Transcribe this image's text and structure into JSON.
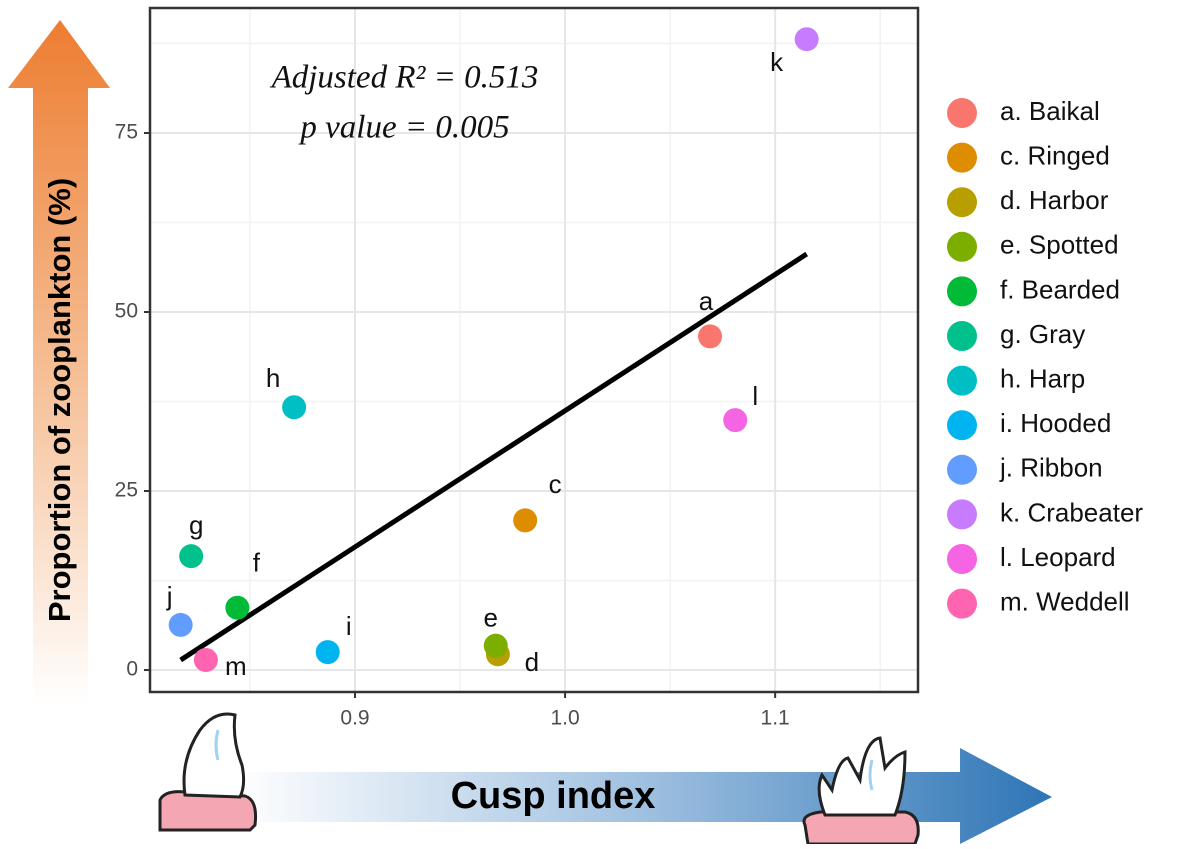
{
  "chart_data": {
    "type": "scatter",
    "xlabel": "Cusp index",
    "ylabel": "Proportion of zooplankton (%)",
    "annotations": [
      "Adjusted R² = 0.513",
      "p value = 0.005"
    ],
    "xlim": [
      0.8024,
      1.168
    ],
    "ylim": [
      -3.07,
      92.46
    ],
    "xticks": [
      0.9,
      {
        "value": 1.0,
        "label": "1.0"
      },
      1.1
    ],
    "yticks": [
      0,
      25,
      50,
      75
    ],
    "grid": true,
    "trend_line": {
      "color": "#000000",
      "x": [
        0.817,
        1.115
      ],
      "y": [
        1.4,
        58.1
      ]
    },
    "series": [
      {
        "name": "a. Baikal",
        "label": "a",
        "color": "#F8766D",
        "x": [
          1.069
        ],
        "values": [
          46.6
        ]
      },
      {
        "name": "c. Ringed",
        "label": "c",
        "color": "#DE8C00",
        "x": [
          0.981
        ],
        "values": [
          20.9
        ]
      },
      {
        "name": "d. Harbor",
        "label": "d",
        "color": "#B79F00",
        "x": [
          0.968
        ],
        "values": [
          2.2
        ]
      },
      {
        "name": "e. Spotted",
        "label": "e",
        "color": "#7CAE00",
        "x": [
          0.967
        ],
        "values": [
          3.4
        ]
      },
      {
        "name": "f. Bearded",
        "label": "f",
        "color": "#00BA38",
        "x": [
          0.844
        ],
        "values": [
          8.7
        ]
      },
      {
        "name": "g. Gray",
        "label": "g",
        "color": "#00C08B",
        "x": [
          0.822
        ],
        "values": [
          15.9
        ]
      },
      {
        "name": "h. Harp",
        "label": "h",
        "color": "#00BFC4",
        "x": [
          0.871
        ],
        "values": [
          36.7
        ]
      },
      {
        "name": "i. Hooded",
        "label": "i",
        "color": "#00B4F0",
        "x": [
          0.887
        ],
        "values": [
          2.5
        ]
      },
      {
        "name": "j. Ribbon",
        "label": "j",
        "color": "#619CFF",
        "x": [
          0.817
        ],
        "values": [
          6.3
        ]
      },
      {
        "name": "k. Crabeater",
        "label": "k",
        "color": "#C77CFF",
        "x": [
          1.115
        ],
        "values": [
          88.1
        ]
      },
      {
        "name": "l. Leopard",
        "label": "l",
        "color": "#F564E3",
        "x": [
          1.081
        ],
        "values": [
          34.9
        ]
      },
      {
        "name": "m. Weddell",
        "label": "m",
        "color": "#FF64B0",
        "x": [
          0.829
        ],
        "values": [
          1.4
        ]
      }
    ]
  }
}
